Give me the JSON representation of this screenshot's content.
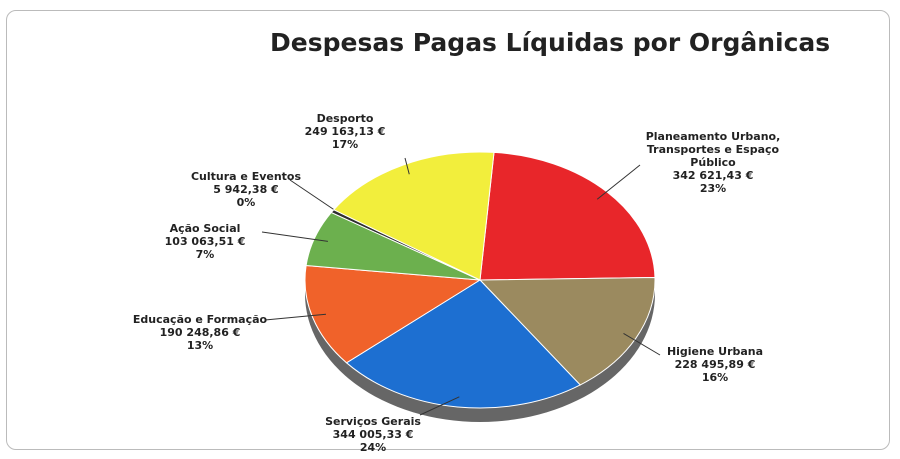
{
  "chart_data": {
    "type": "pie",
    "title": "Despesas Pagas Líquidas por Orgânicas",
    "categories": [
      "Planeamento Urbano,\nTransportes e Espaço\nPúblico",
      "Higiene Urbana",
      "Serviços Gerais",
      "Educação e Formação",
      "Ação Social",
      "Cultura e Eventos",
      "Desporto"
    ],
    "values": [
      342621.43,
      228495.89,
      344005.33,
      190248.86,
      103063.51,
      5942.38,
      249163.13
    ],
    "value_labels": [
      "342 621,43 €",
      "228 495,89 €",
      "344 005,33 €",
      "190 248,86 €",
      "103 063,51 €",
      "5 942,38 €",
      "249 163,13 €"
    ],
    "percent_labels": [
      "23%",
      "16%",
      "24%",
      "13%",
      "7%",
      "0%",
      "17%"
    ],
    "colors": [
      "#e8262a",
      "#9b8a5f",
      "#1d6fd1",
      "#f0622a",
      "#6cb04e",
      "#2e2e2e",
      "#f2ee3c"
    ]
  }
}
